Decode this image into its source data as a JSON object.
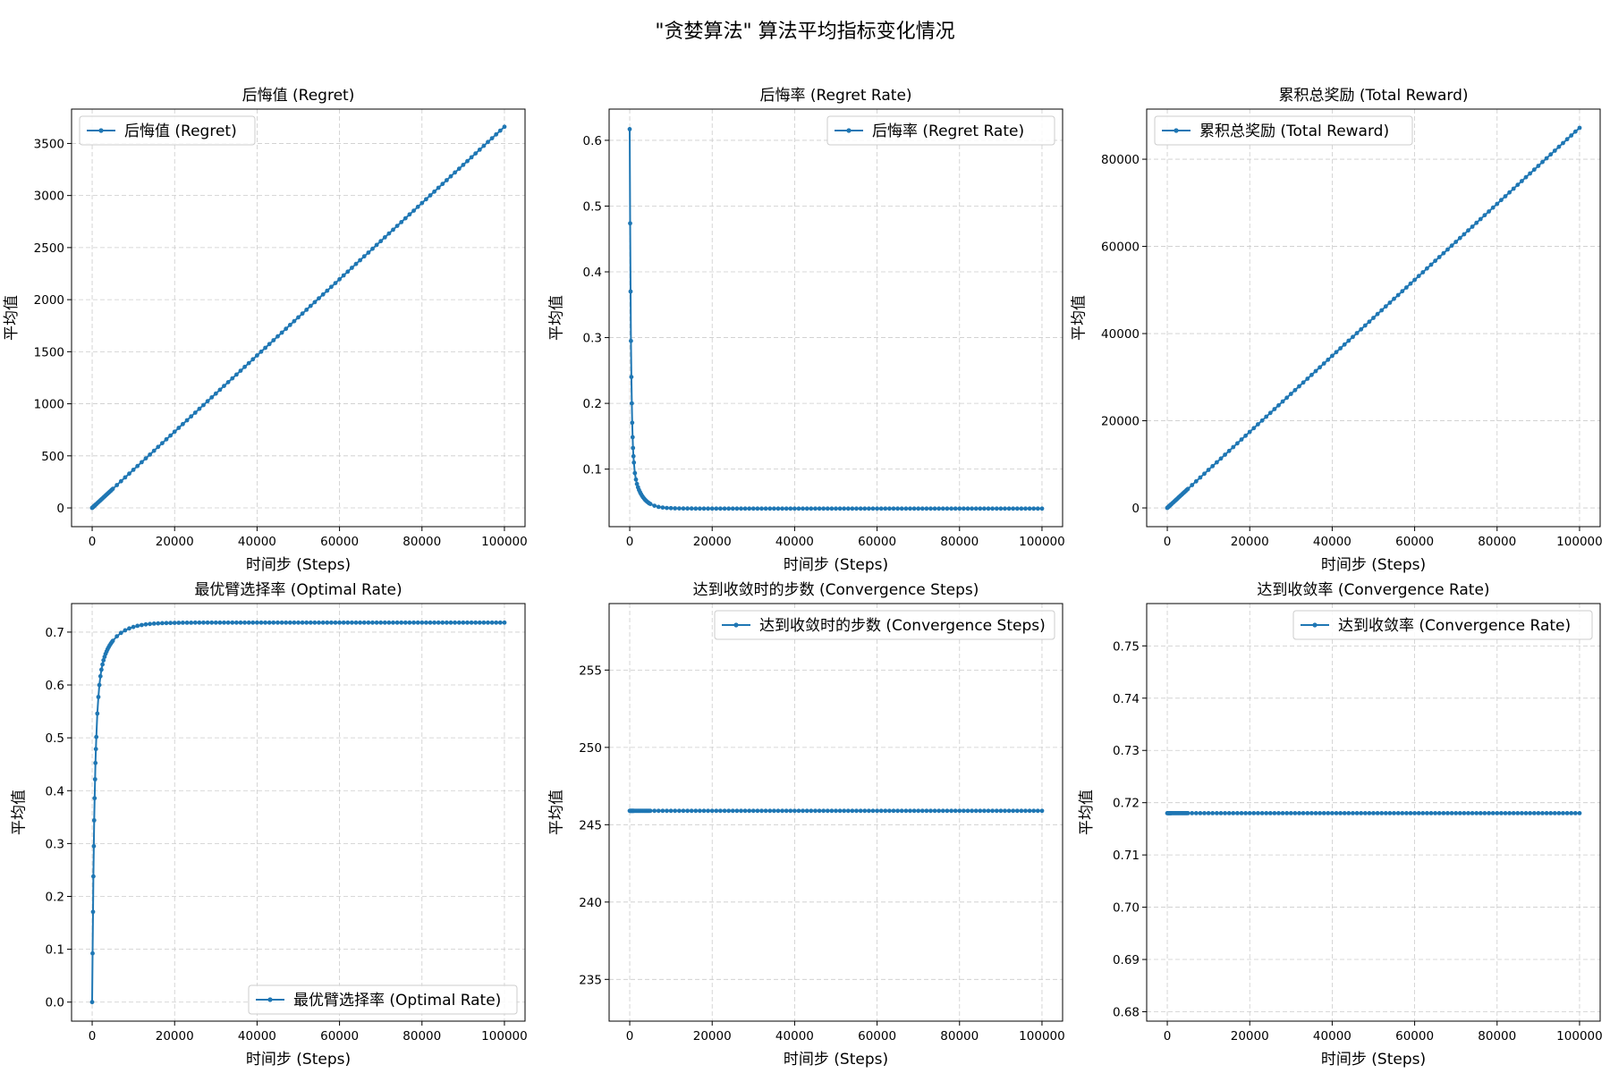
{
  "figure": {
    "title": "\"贪婪算法\" 算法平均指标变化情况"
  },
  "chart_data": [
    {
      "type": "line",
      "title": "后悔值 (Regret)",
      "xlabel": "时间步 (Steps)",
      "ylabel": "平均值",
      "xlim": [
        -5000,
        105000
      ],
      "ylim": [
        -180,
        3830
      ],
      "xticks": [
        0,
        20000,
        40000,
        60000,
        80000,
        100000
      ],
      "yticks": [
        0,
        500,
        1000,
        1500,
        2000,
        2500,
        3000,
        3500
      ],
      "grid": true,
      "legend_position": "upper-left",
      "color": "#1f77b4",
      "series": [
        {
          "name": "后悔值 (Regret)",
          "shape": "linear",
          "x_range": [
            0,
            100000
          ],
          "y_start": 0,
          "y_end": 3660
        }
      ]
    },
    {
      "type": "line",
      "title": "后悔率 (Regret Rate)",
      "xlabel": "时间步 (Steps)",
      "ylabel": "平均值",
      "xlim": [
        -5000,
        105000
      ],
      "ylim": [
        0.0125,
        0.6475
      ],
      "xticks": [
        0,
        20000,
        40000,
        60000,
        80000,
        100000
      ],
      "yticks": [
        0.1,
        0.2,
        0.3,
        0.4,
        0.5,
        0.6
      ],
      "grid": true,
      "legend_position": "upper-right",
      "color": "#1f77b4",
      "series": [
        {
          "name": "后悔率 (Regret Rate)",
          "shape": "decay",
          "x_range": [
            0,
            100000
          ],
          "y_start": 0.617,
          "y_end": 0.04
        }
      ]
    },
    {
      "type": "line",
      "title": "累积总奖励 (Total Reward)",
      "xlabel": "时间步 (Steps)",
      "ylabel": "平均值",
      "xlim": [
        -5000,
        105000
      ],
      "ylim": [
        -4300,
        91500
      ],
      "xticks": [
        0,
        20000,
        40000,
        60000,
        80000,
        100000
      ],
      "yticks": [
        0,
        20000,
        40000,
        60000,
        80000
      ],
      "grid": true,
      "legend_position": "upper-left",
      "color": "#1f77b4",
      "series": [
        {
          "name": "累积总奖励 (Total Reward)",
          "shape": "linear",
          "x_range": [
            0,
            100000
          ],
          "y_start": 0,
          "y_end": 87200
        }
      ]
    },
    {
      "type": "line",
      "title": "最优臂选择率 (Optimal Rate)",
      "xlabel": "时间步 (Steps)",
      "ylabel": "平均值",
      "xlim": [
        -5000,
        105000
      ],
      "ylim": [
        -0.036,
        0.754
      ],
      "xticks": [
        0,
        20000,
        40000,
        60000,
        80000,
        100000
      ],
      "yticks": [
        0.0,
        0.1,
        0.2,
        0.3,
        0.4,
        0.5,
        0.6,
        0.7
      ],
      "grid": true,
      "legend_position": "lower-right",
      "color": "#1f77b4",
      "series": [
        {
          "name": "最优臂选择率 (Optimal Rate)",
          "shape": "rise",
          "x_range": [
            0,
            100000
          ],
          "y_start": 0.0,
          "y_end": 0.718
        }
      ]
    },
    {
      "type": "line",
      "title": "达到收敛时的步数 (Convergence Steps)",
      "xlabel": "时间步 (Steps)",
      "ylabel": "平均值",
      "xlim": [
        -5000,
        105000
      ],
      "ylim": [
        232.3,
        259.3
      ],
      "xticks": [
        0,
        20000,
        40000,
        60000,
        80000,
        100000
      ],
      "yticks": [
        235,
        240,
        245,
        250,
        255
      ],
      "grid": true,
      "legend_position": "upper-right",
      "color": "#1f77b4",
      "series": [
        {
          "name": "达到收敛时的步数 (Convergence Steps)",
          "shape": "constant",
          "x_range": [
            0,
            100000
          ],
          "y_start": 245.9,
          "y_end": 245.9
        }
      ]
    },
    {
      "type": "line",
      "title": "达到收敛率 (Convergence Rate)",
      "xlabel": "时间步 (Steps)",
      "ylabel": "平均值",
      "xlim": [
        -5000,
        105000
      ],
      "ylim": [
        0.6782,
        0.7581
      ],
      "xticks": [
        0,
        20000,
        40000,
        60000,
        80000,
        100000
      ],
      "yticks": [
        0.68,
        0.69,
        0.7,
        0.71,
        0.72,
        0.73,
        0.74,
        0.75
      ],
      "grid": true,
      "legend_position": "upper-right",
      "color": "#1f77b4",
      "series": [
        {
          "name": "达到收敛率 (Convergence Rate)",
          "shape": "constant",
          "x_range": [
            0,
            100000
          ],
          "y_start": 0.718,
          "y_end": 0.718
        }
      ]
    }
  ]
}
